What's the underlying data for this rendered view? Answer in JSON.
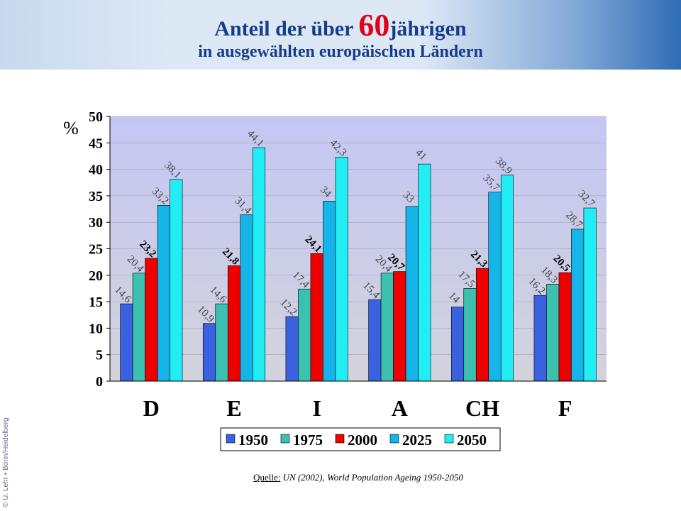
{
  "title": {
    "pre": "Anteil der über ",
    "number": "60",
    "post": "jährigen",
    "line2": "in ausgewählten europäischen Ländern"
  },
  "source": {
    "label": "Quelle:",
    "text": " UN (2002), World Population Ageing 1950-2050"
  },
  "copyright": "© U. Lehr • Bonn/Heidelberg",
  "chart_data": {
    "type": "bar",
    "ylabel": "%",
    "ylim": [
      0,
      50
    ],
    "yticks": [
      0,
      5,
      10,
      15,
      20,
      25,
      30,
      35,
      40,
      45,
      50
    ],
    "categories": [
      "D",
      "E",
      "I",
      "A",
      "CH",
      "F"
    ],
    "legend_position": "bottom",
    "series": [
      {
        "name": "1950",
        "color": "#3a62e0",
        "labels": [
          "14,6",
          "10,9",
          "12,2",
          "15,4",
          "14",
          "16,2"
        ],
        "values": [
          14.6,
          10.9,
          12.2,
          15.4,
          14.0,
          16.2
        ]
      },
      {
        "name": "1975",
        "color": "#3cc0b0",
        "labels": [
          "20,4",
          "14,6",
          "17,4",
          "20,4",
          "17,5",
          "18,3"
        ],
        "values": [
          20.4,
          14.6,
          17.4,
          20.4,
          17.5,
          18.3
        ]
      },
      {
        "name": "2000",
        "color": "#ee0000",
        "labels": [
          "23,2",
          "21,8",
          "24,1",
          "20,7",
          "21,3",
          "20,5"
        ],
        "values": [
          23.2,
          21.8,
          24.1,
          20.7,
          21.3,
          20.5
        ]
      },
      {
        "name": "2025",
        "color": "#15b5ea",
        "labels": [
          "33,2",
          "31,4",
          "34",
          "33",
          "35,7",
          "28,7"
        ],
        "values": [
          33.2,
          31.4,
          34.0,
          33.0,
          35.7,
          28.7
        ]
      },
      {
        "name": "2050",
        "color": "#22ecf4",
        "labels": [
          "38,1",
          "44,1",
          "42,3",
          "41",
          "38,9",
          "32,7"
        ],
        "values": [
          38.1,
          44.1,
          42.3,
          41.0,
          38.9,
          32.7
        ]
      }
    ]
  }
}
